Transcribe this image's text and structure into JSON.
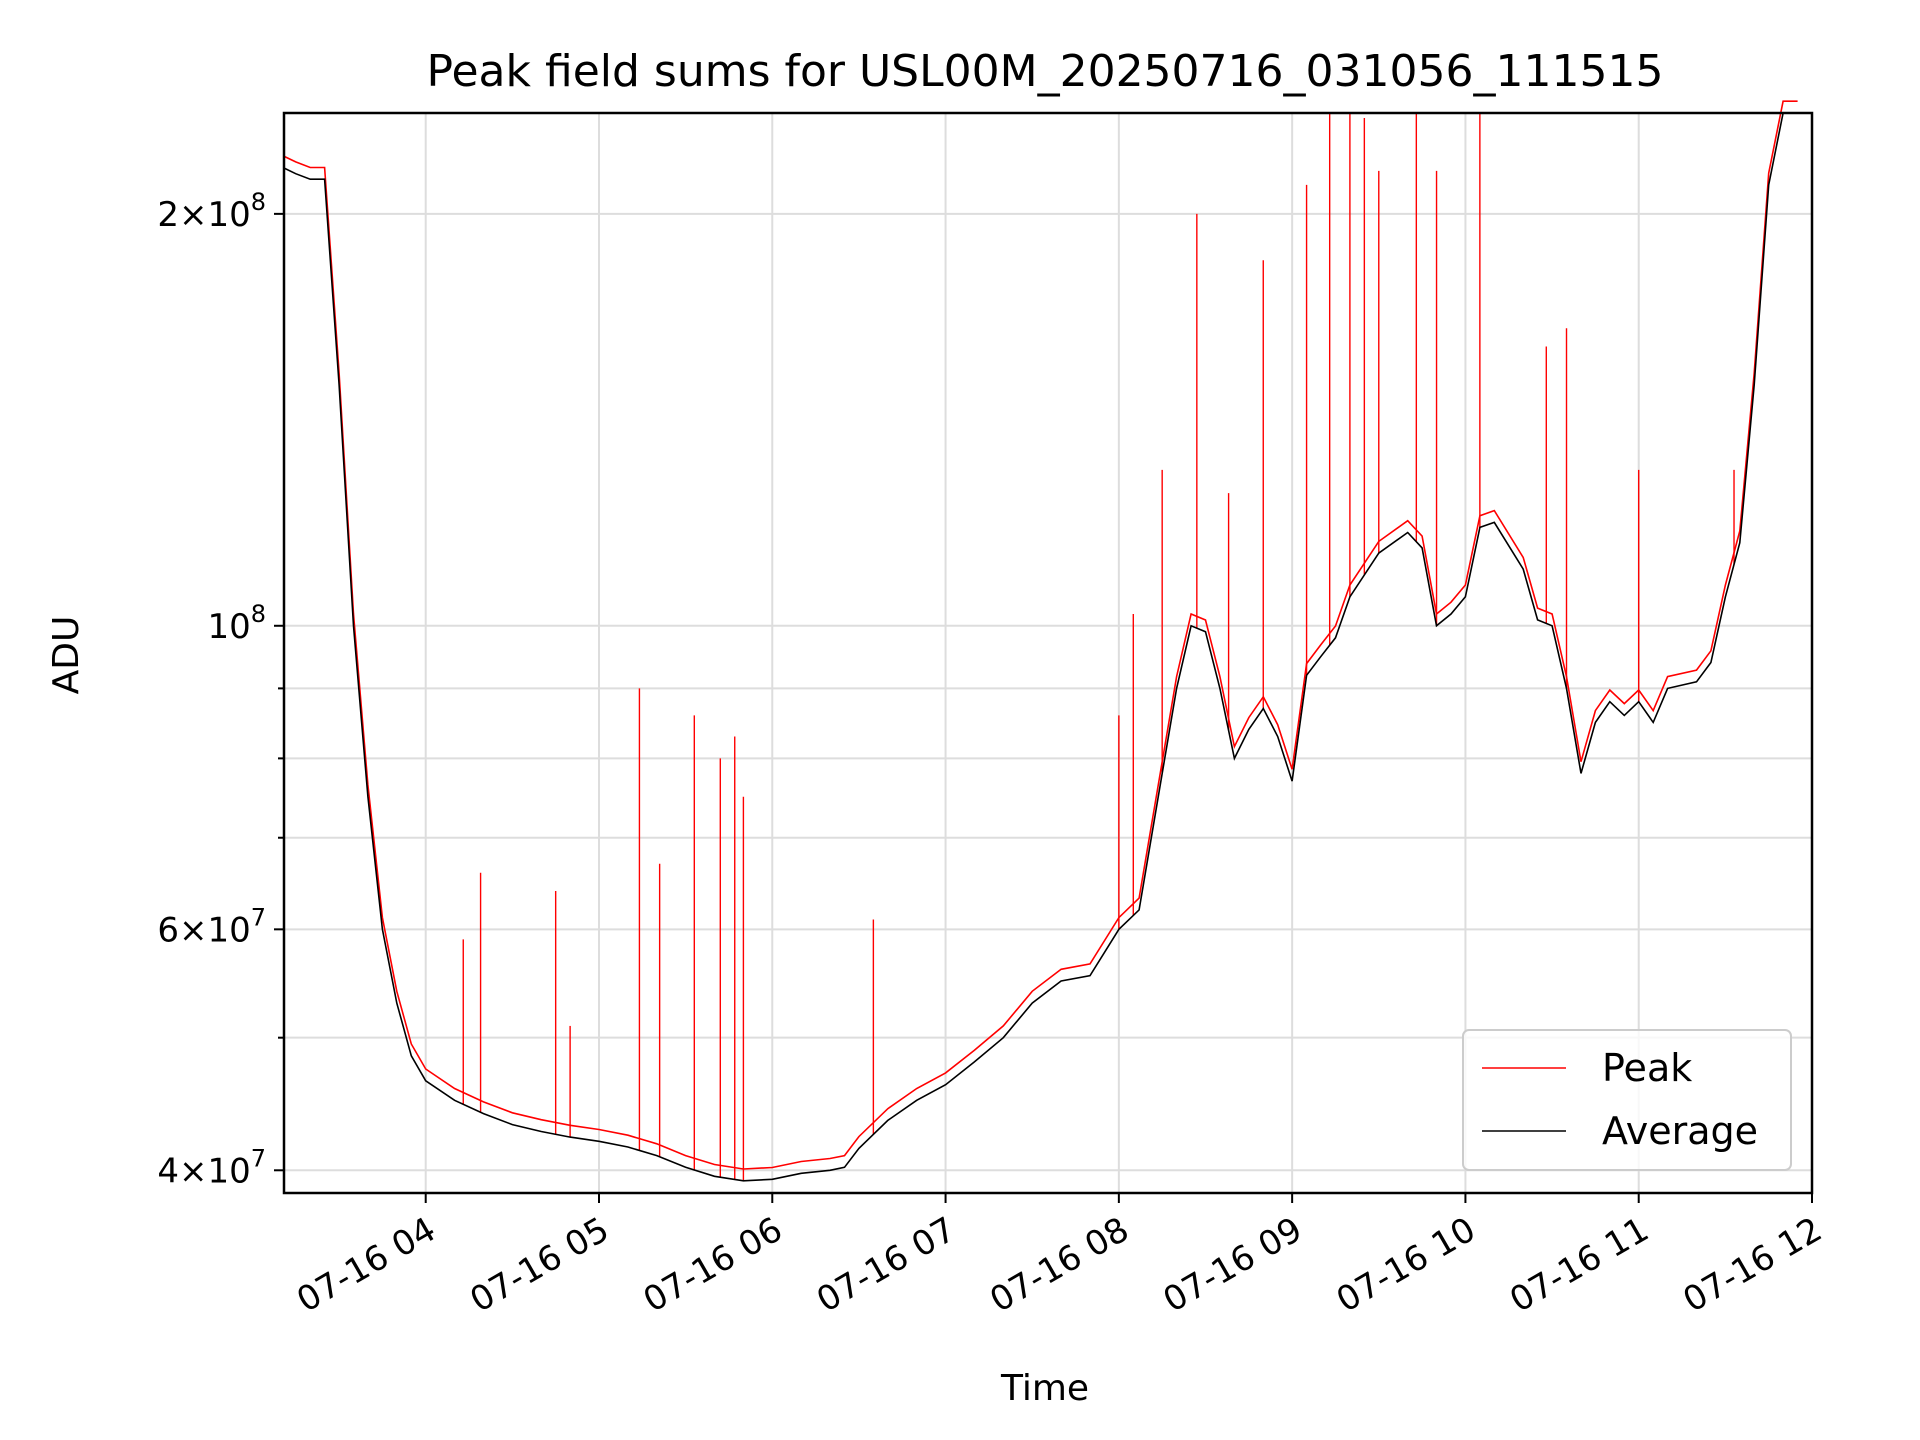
{
  "chart_data": {
    "type": "line",
    "title": "Peak field sums for USL00M_20250716_031056_111515",
    "xlabel": "Time",
    "ylabel": "ADU",
    "yscale": "log",
    "ylim": [
      38500000,
      237000000
    ],
    "xlim": [
      "2025-07-16 03:10:56",
      "2025-07-16 12:00:00"
    ],
    "grid": true,
    "legend_position": "lower right",
    "x_ticks": [
      {
        "t": "2025-07-16 04:00",
        "label": "07-16 04"
      },
      {
        "t": "2025-07-16 05:00",
        "label": "07-16 05"
      },
      {
        "t": "2025-07-16 06:00",
        "label": "07-16 06"
      },
      {
        "t": "2025-07-16 07:00",
        "label": "07-16 07"
      },
      {
        "t": "2025-07-16 08:00",
        "label": "07-16 08"
      },
      {
        "t": "2025-07-16 09:00",
        "label": "07-16 09"
      },
      {
        "t": "2025-07-16 10:00",
        "label": "07-16 10"
      },
      {
        "t": "2025-07-16 11:00",
        "label": "07-16 11"
      },
      {
        "t": "2025-07-16 12:00",
        "label": "07-16 12"
      }
    ],
    "y_major_ticks": [
      {
        "v": 40000000,
        "mant": "4",
        "exp": "7"
      },
      {
        "v": 60000000,
        "mant": "6",
        "exp": "7"
      },
      {
        "v": 100000000,
        "mant": "",
        "exp": "8"
      },
      {
        "v": 200000000,
        "mant": "2",
        "exp": "8"
      }
    ],
    "y_minor_grid": [
      50000000,
      70000000,
      80000000,
      90000000
    ],
    "series": [
      {
        "name": "Average",
        "color": "#000000",
        "points": [
          [
            "2025-07-16 03:11",
            216000000
          ],
          [
            "2025-07-16 03:15",
            214000000
          ],
          [
            "2025-07-16 03:20",
            212000000
          ],
          [
            "2025-07-16 03:25",
            212000000
          ],
          [
            "2025-07-16 03:30",
            150000000
          ],
          [
            "2025-07-16 03:35",
            100000000
          ],
          [
            "2025-07-16 03:40",
            75000000
          ],
          [
            "2025-07-16 03:45",
            60000000
          ],
          [
            "2025-07-16 03:50",
            53000000
          ],
          [
            "2025-07-16 03:55",
            48500000
          ],
          [
            "2025-07-16 04:00",
            46500000
          ],
          [
            "2025-07-16 04:10",
            45000000
          ],
          [
            "2025-07-16 04:20",
            44000000
          ],
          [
            "2025-07-16 04:30",
            43200000
          ],
          [
            "2025-07-16 04:40",
            42700000
          ],
          [
            "2025-07-16 04:50",
            42300000
          ],
          [
            "2025-07-16 05:00",
            42000000
          ],
          [
            "2025-07-16 05:10",
            41600000
          ],
          [
            "2025-07-16 05:20",
            41000000
          ],
          [
            "2025-07-16 05:30",
            40200000
          ],
          [
            "2025-07-16 05:40",
            39600000
          ],
          [
            "2025-07-16 05:50",
            39300000
          ],
          [
            "2025-07-16 06:00",
            39400000
          ],
          [
            "2025-07-16 06:10",
            39800000
          ],
          [
            "2025-07-16 06:20",
            40000000
          ],
          [
            "2025-07-16 06:25",
            40200000
          ],
          [
            "2025-07-16 06:30",
            41500000
          ],
          [
            "2025-07-16 06:40",
            43500000
          ],
          [
            "2025-07-16 06:50",
            45000000
          ],
          [
            "2025-07-16 07:00",
            46200000
          ],
          [
            "2025-07-16 07:10",
            48000000
          ],
          [
            "2025-07-16 07:20",
            50000000
          ],
          [
            "2025-07-16 07:30",
            53000000
          ],
          [
            "2025-07-16 07:40",
            55000000
          ],
          [
            "2025-07-16 07:50",
            55500000
          ],
          [
            "2025-07-16 08:00",
            60000000
          ],
          [
            "2025-07-16 08:07",
            62000000
          ],
          [
            "2025-07-16 08:15",
            78000000
          ],
          [
            "2025-07-16 08:20",
            90000000
          ],
          [
            "2025-07-16 08:25",
            100000000
          ],
          [
            "2025-07-16 08:30",
            99000000
          ],
          [
            "2025-07-16 08:35",
            90000000
          ],
          [
            "2025-07-16 08:40",
            80000000
          ],
          [
            "2025-07-16 08:45",
            84000000
          ],
          [
            "2025-07-16 08:50",
            87000000
          ],
          [
            "2025-07-16 08:55",
            83000000
          ],
          [
            "2025-07-16 09:00",
            77000000
          ],
          [
            "2025-07-16 09:05",
            92000000
          ],
          [
            "2025-07-16 09:10",
            95000000
          ],
          [
            "2025-07-16 09:15",
            98000000
          ],
          [
            "2025-07-16 09:20",
            105000000
          ],
          [
            "2025-07-16 09:30",
            113000000
          ],
          [
            "2025-07-16 09:40",
            117000000
          ],
          [
            "2025-07-16 09:45",
            114000000
          ],
          [
            "2025-07-16 09:50",
            100000000
          ],
          [
            "2025-07-16 09:55",
            102000000
          ],
          [
            "2025-07-16 10:00",
            105000000
          ],
          [
            "2025-07-16 10:05",
            118000000
          ],
          [
            "2025-07-16 10:10",
            119000000
          ],
          [
            "2025-07-16 10:20",
            110000000
          ],
          [
            "2025-07-16 10:25",
            101000000
          ],
          [
            "2025-07-16 10:30",
            100000000
          ],
          [
            "2025-07-16 10:35",
            90000000
          ],
          [
            "2025-07-16 10:40",
            78000000
          ],
          [
            "2025-07-16 10:45",
            85000000
          ],
          [
            "2025-07-16 10:50",
            88000000
          ],
          [
            "2025-07-16 10:55",
            86000000
          ],
          [
            "2025-07-16 11:00",
            88000000
          ],
          [
            "2025-07-16 11:05",
            85000000
          ],
          [
            "2025-07-16 11:10",
            90000000
          ],
          [
            "2025-07-16 11:20",
            91000000
          ],
          [
            "2025-07-16 11:25",
            94000000
          ],
          [
            "2025-07-16 11:30",
            105000000
          ],
          [
            "2025-07-16 11:35",
            115000000
          ],
          [
            "2025-07-16 11:40",
            150000000
          ],
          [
            "2025-07-16 11:45",
            210000000
          ],
          [
            "2025-07-16 11:50",
            237000000
          ],
          [
            "2025-07-16 11:55",
            237000000
          ]
        ]
      },
      {
        "name": "Peak",
        "color": "#ff0000",
        "spikes": [
          [
            "2025-07-16 04:13",
            59000000
          ],
          [
            "2025-07-16 04:19",
            66000000
          ],
          [
            "2025-07-16 04:45",
            64000000
          ],
          [
            "2025-07-16 04:50",
            51000000
          ],
          [
            "2025-07-16 05:14",
            90000000
          ],
          [
            "2025-07-16 05:21",
            67000000
          ],
          [
            "2025-07-16 05:33",
            86000000
          ],
          [
            "2025-07-16 05:42",
            80000000
          ],
          [
            "2025-07-16 05:47",
            83000000
          ],
          [
            "2025-07-16 05:50",
            75000000
          ],
          [
            "2025-07-16 06:35",
            61000000
          ],
          [
            "2025-07-16 08:00",
            86000000
          ],
          [
            "2025-07-16 08:05",
            102000000
          ],
          [
            "2025-07-16 08:15",
            130000000
          ],
          [
            "2025-07-16 08:27",
            200000000
          ],
          [
            "2025-07-16 08:38",
            125000000
          ],
          [
            "2025-07-16 08:50",
            185000000
          ],
          [
            "2025-07-16 09:05",
            210000000
          ],
          [
            "2025-07-16 09:13",
            237000000
          ],
          [
            "2025-07-16 09:20",
            237000000
          ],
          [
            "2025-07-16 09:25",
            235000000
          ],
          [
            "2025-07-16 09:30",
            215000000
          ],
          [
            "2025-07-16 09:43",
            237000000
          ],
          [
            "2025-07-16 09:50",
            215000000
          ],
          [
            "2025-07-16 10:05",
            237000000
          ],
          [
            "2025-07-16 10:28",
            160000000
          ],
          [
            "2025-07-16 10:35",
            165000000
          ],
          [
            "2025-07-16 11:00",
            130000000
          ],
          [
            "2025-07-16 11:33",
            130000000
          ]
        ]
      }
    ]
  }
}
